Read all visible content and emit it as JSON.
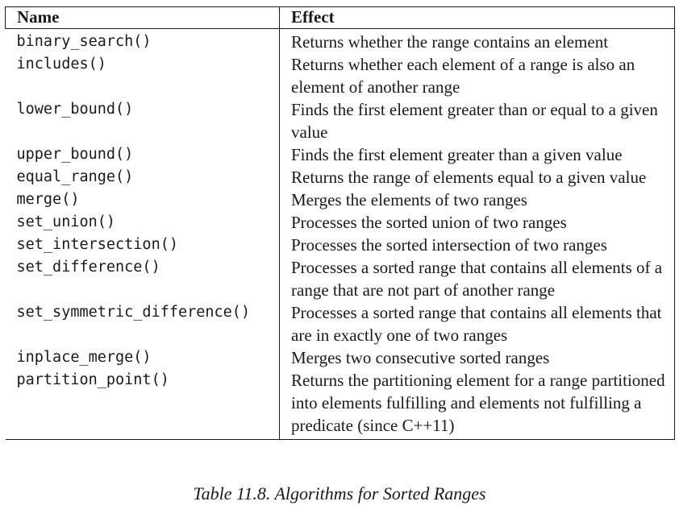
{
  "table": {
    "headers": {
      "name": "Name",
      "effect": "Effect"
    },
    "rows": [
      {
        "name": "binary_search()",
        "effect": "Returns whether the range contains an element"
      },
      {
        "name": "includes()",
        "effect": "Returns whether each element of a range is also an element of another range"
      },
      {
        "name": "lower_bound()",
        "effect": "Finds the first element greater than or equal to a given value"
      },
      {
        "name": "upper_bound()",
        "effect": "Finds the first element greater than a given value"
      },
      {
        "name": "equal_range()",
        "effect": "Returns the range of elements equal to a given value"
      },
      {
        "name": "merge()",
        "effect": "Merges the elements of two ranges"
      },
      {
        "name": "set_union()",
        "effect": "Processes the sorted union of two ranges"
      },
      {
        "name": "set_intersection()",
        "effect": "Processes the sorted intersection of two ranges"
      },
      {
        "name": "set_difference()",
        "effect": "Processes a sorted range that contains all elements of a range that are not part of another range"
      },
      {
        "name": "set_symmetric_difference()",
        "effect": "Processes a sorted range that contains all elements that are in exactly one of two ranges"
      },
      {
        "name": "inplace_merge()",
        "effect": "Merges two consecutive sorted ranges"
      },
      {
        "name": "partition_point()",
        "effect": "Returns the partitioning element for a range partitioned into elements fulfilling and elements not fulfilling a predicate (since C++11)"
      }
    ]
  },
  "caption": "Table 11.8. Algorithms for Sorted Ranges"
}
